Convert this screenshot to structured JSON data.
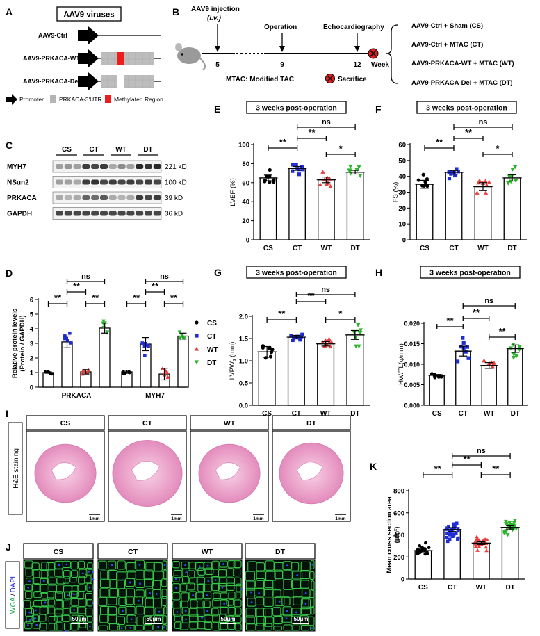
{
  "colors": {
    "CS": "#000000",
    "CT": "#1f2bd6",
    "WT": "#e8403c",
    "DT": "#2cb52c",
    "gray": "#b4b4b4",
    "methyl": "#ee1c1c"
  },
  "panels": {
    "A": {
      "letter": "A",
      "title": "AAV9 viruses",
      "constructs": [
        "AAV9-Ctrl",
        "AAV9-PRKACA-WT",
        "AAV9-PRKACA-Del"
      ],
      "legend": [
        "Promoter",
        "PRKACA-3'UTR",
        "Methylated Region"
      ]
    },
    "B": {
      "letter": "B",
      "injection": "AAV9 injection",
      "injection_route": "(i.v.)",
      "operation": "Operation",
      "echo": "Echocardiography",
      "ticks": [
        "5",
        "9",
        "12"
      ],
      "week": "Week",
      "mtac_note": "MTAC: Modified TAC",
      "sacrifice": "Sacrifice",
      "groups": [
        "AAV9-Ctrl + Sham (CS)",
        "AAV9-Ctrl + MTAC (CT)",
        "AAV9-PRKACA-WT + MTAC (WT)",
        "AAV9-PRKACA-Del + MTAC (DT)"
      ]
    },
    "C": {
      "letter": "C",
      "lanes": [
        "CS",
        "CT",
        "WT",
        "DT"
      ],
      "bands": [
        {
          "name": "MYH7",
          "size": "221 kD"
        },
        {
          "name": "NSun2",
          "size": "100 kD"
        },
        {
          "name": "PRKACA",
          "size": "39 kD"
        },
        {
          "name": "GAPDH",
          "size": "36 kD"
        }
      ]
    },
    "I": {
      "letter": "I",
      "side_label": "H&E staining",
      "groups": [
        "CS",
        "CT",
        "WT",
        "DT"
      ],
      "scale": "1mm"
    },
    "J": {
      "letter": "J",
      "side_label_1": "WGA",
      "side_label_2": "/",
      "side_label_3": "DAPI",
      "groups": [
        "CS",
        "CT",
        "WT",
        "DT"
      ],
      "scale": "50μm"
    }
  },
  "chart_data": [
    {
      "id": "D",
      "letter": "D",
      "type": "bar",
      "ylabel": "Relative protein levels (Protein / GAPDH)",
      "ylabel_line1": "Relative protein levels",
      "ylabel_line2": "(Protein / GAPDH)",
      "ylim": [
        0,
        6
      ],
      "yticks": [
        "0",
        "1",
        "2",
        "3",
        "4",
        "5",
        "6"
      ],
      "categories": [
        "PRKACA",
        "MYH7"
      ],
      "legend": [
        "CS",
        "CT",
        "WT",
        "DT"
      ],
      "legend_position": "right",
      "series": [
        {
          "name": "CS",
          "values": [
            1.0,
            1.05
          ],
          "errors": [
            0.05,
            0.1
          ]
        },
        {
          "name": "CT",
          "values": [
            3.1,
            2.95
          ],
          "errors": [
            0.4,
            0.45
          ]
        },
        {
          "name": "WT",
          "values": [
            1.05,
            0.9
          ],
          "errors": [
            0.15,
            0.4
          ]
        },
        {
          "name": "DT",
          "values": [
            4.05,
            3.5
          ],
          "errors": [
            0.35,
            0.2
          ]
        }
      ],
      "comparisons": [
        {
          "cat": 0,
          "from": 0,
          "to": 1,
          "label": "**"
        },
        {
          "cat": 0,
          "from": 1,
          "to": 2,
          "label": "**"
        },
        {
          "cat": 0,
          "from": 2,
          "to": 3,
          "label": "**"
        },
        {
          "cat": 0,
          "from": 1,
          "to": 3,
          "label": "ns"
        },
        {
          "cat": 1,
          "from": 0,
          "to": 1,
          "label": "**"
        },
        {
          "cat": 1,
          "from": 1,
          "to": 2,
          "label": "**"
        },
        {
          "cat": 1,
          "from": 2,
          "to": 3,
          "label": "**"
        },
        {
          "cat": 1,
          "from": 1,
          "to": 3,
          "label": "ns"
        }
      ]
    },
    {
      "id": "E",
      "letter": "E",
      "type": "bar",
      "title": "3 weeks post-operation",
      "ylabel": "LVEF (%)",
      "ylim": [
        0,
        100
      ],
      "yticks": [
        "0",
        "20",
        "40",
        "60",
        "80",
        "100"
      ],
      "categories": [
        "CS",
        "CT",
        "WT",
        "DT"
      ],
      "values": [
        65,
        75,
        63,
        71
      ],
      "errors": [
        3,
        2,
        3,
        2
      ],
      "comparisons": [
        {
          "from": 0,
          "to": 1,
          "label": "**"
        },
        {
          "from": 1,
          "to": 2,
          "label": "**"
        },
        {
          "from": 2,
          "to": 3,
          "label": "*"
        },
        {
          "from": 1,
          "to": 3,
          "label": "ns"
        }
      ]
    },
    {
      "id": "F",
      "letter": "F",
      "type": "bar",
      "title": "3 weeks post-operation",
      "ylabel": "FS (%)",
      "ylim": [
        0,
        60
      ],
      "yticks": [
        "0",
        "10",
        "20",
        "30",
        "40",
        "50",
        "60"
      ],
      "categories": [
        "CS",
        "CT",
        "WT",
        "DT"
      ],
      "values": [
        35,
        42.5,
        33.5,
        39
      ],
      "errors": [
        2.5,
        1.2,
        2.5,
        2
      ],
      "comparisons": [
        {
          "from": 0,
          "to": 1,
          "label": "**"
        },
        {
          "from": 1,
          "to": 2,
          "label": "**"
        },
        {
          "from": 2,
          "to": 3,
          "label": "*"
        },
        {
          "from": 1,
          "to": 3,
          "label": "ns"
        }
      ]
    },
    {
      "id": "G",
      "letter": "G",
      "type": "bar",
      "title": "3 weeks post-operation",
      "ylabel": "LVPW,s (mm)",
      "ylabel_main": "LVPW",
      "ylabel_sub": "s",
      "ylabel_unit": " (mm)",
      "ylim": [
        0,
        2.0
      ],
      "yticks": [
        "0.0",
        "0.5",
        "1.0",
        "1.5",
        "2.0"
      ],
      "categories": [
        "CS",
        "CT",
        "WT",
        "DT"
      ],
      "values": [
        1.2,
        1.53,
        1.38,
        1.58
      ],
      "errors": [
        0.12,
        0.04,
        0.05,
        0.1
      ],
      "comparisons": [
        {
          "from": 0,
          "to": 1,
          "label": "**"
        },
        {
          "from": 1,
          "to": 2,
          "label": "**"
        },
        {
          "from": 2,
          "to": 3,
          "label": "*"
        },
        {
          "from": 1,
          "to": 3,
          "label": "ns"
        }
      ]
    },
    {
      "id": "H",
      "letter": "H",
      "type": "bar",
      "title": "3 weeks post-operation",
      "ylabel": "HW/TL(g/mm)",
      "ylim": [
        0,
        0.02
      ],
      "yticks": [
        "0.000",
        "0.005",
        "0.010",
        "0.015",
        "0.020"
      ],
      "categories": [
        "CS",
        "CT",
        "WT",
        "DT"
      ],
      "values": [
        0.0073,
        0.0132,
        0.0097,
        0.0138
      ],
      "errors": [
        0.0002,
        0.0012,
        0.0007,
        0.0009
      ],
      "comparisons": [
        {
          "from": 0,
          "to": 1,
          "label": "**"
        },
        {
          "from": 1,
          "to": 2,
          "label": "**"
        },
        {
          "from": 2,
          "to": 3,
          "label": "**"
        },
        {
          "from": 1,
          "to": 3,
          "label": "ns"
        }
      ]
    },
    {
      "id": "K",
      "letter": "K",
      "type": "bar",
      "ylabel": "Mean cross section area (μm²)",
      "ylabel_line1": "Mean cross section area",
      "ylabel_line2": "(μm²)",
      "ylim": [
        0,
        800
      ],
      "yticks": [
        "0",
        "200",
        "400",
        "600",
        "800"
      ],
      "categories": [
        "CS",
        "CT",
        "WT",
        "DT"
      ],
      "values": [
        258,
        448,
        325,
        468
      ],
      "errors": [
        12,
        18,
        12,
        15
      ],
      "comparisons": [
        {
          "from": 0,
          "to": 1,
          "label": "**"
        },
        {
          "from": 1,
          "to": 2,
          "label": "**"
        },
        {
          "from": 2,
          "to": 3,
          "label": "**"
        },
        {
          "from": 1,
          "to": 3,
          "label": "ns"
        }
      ]
    }
  ]
}
